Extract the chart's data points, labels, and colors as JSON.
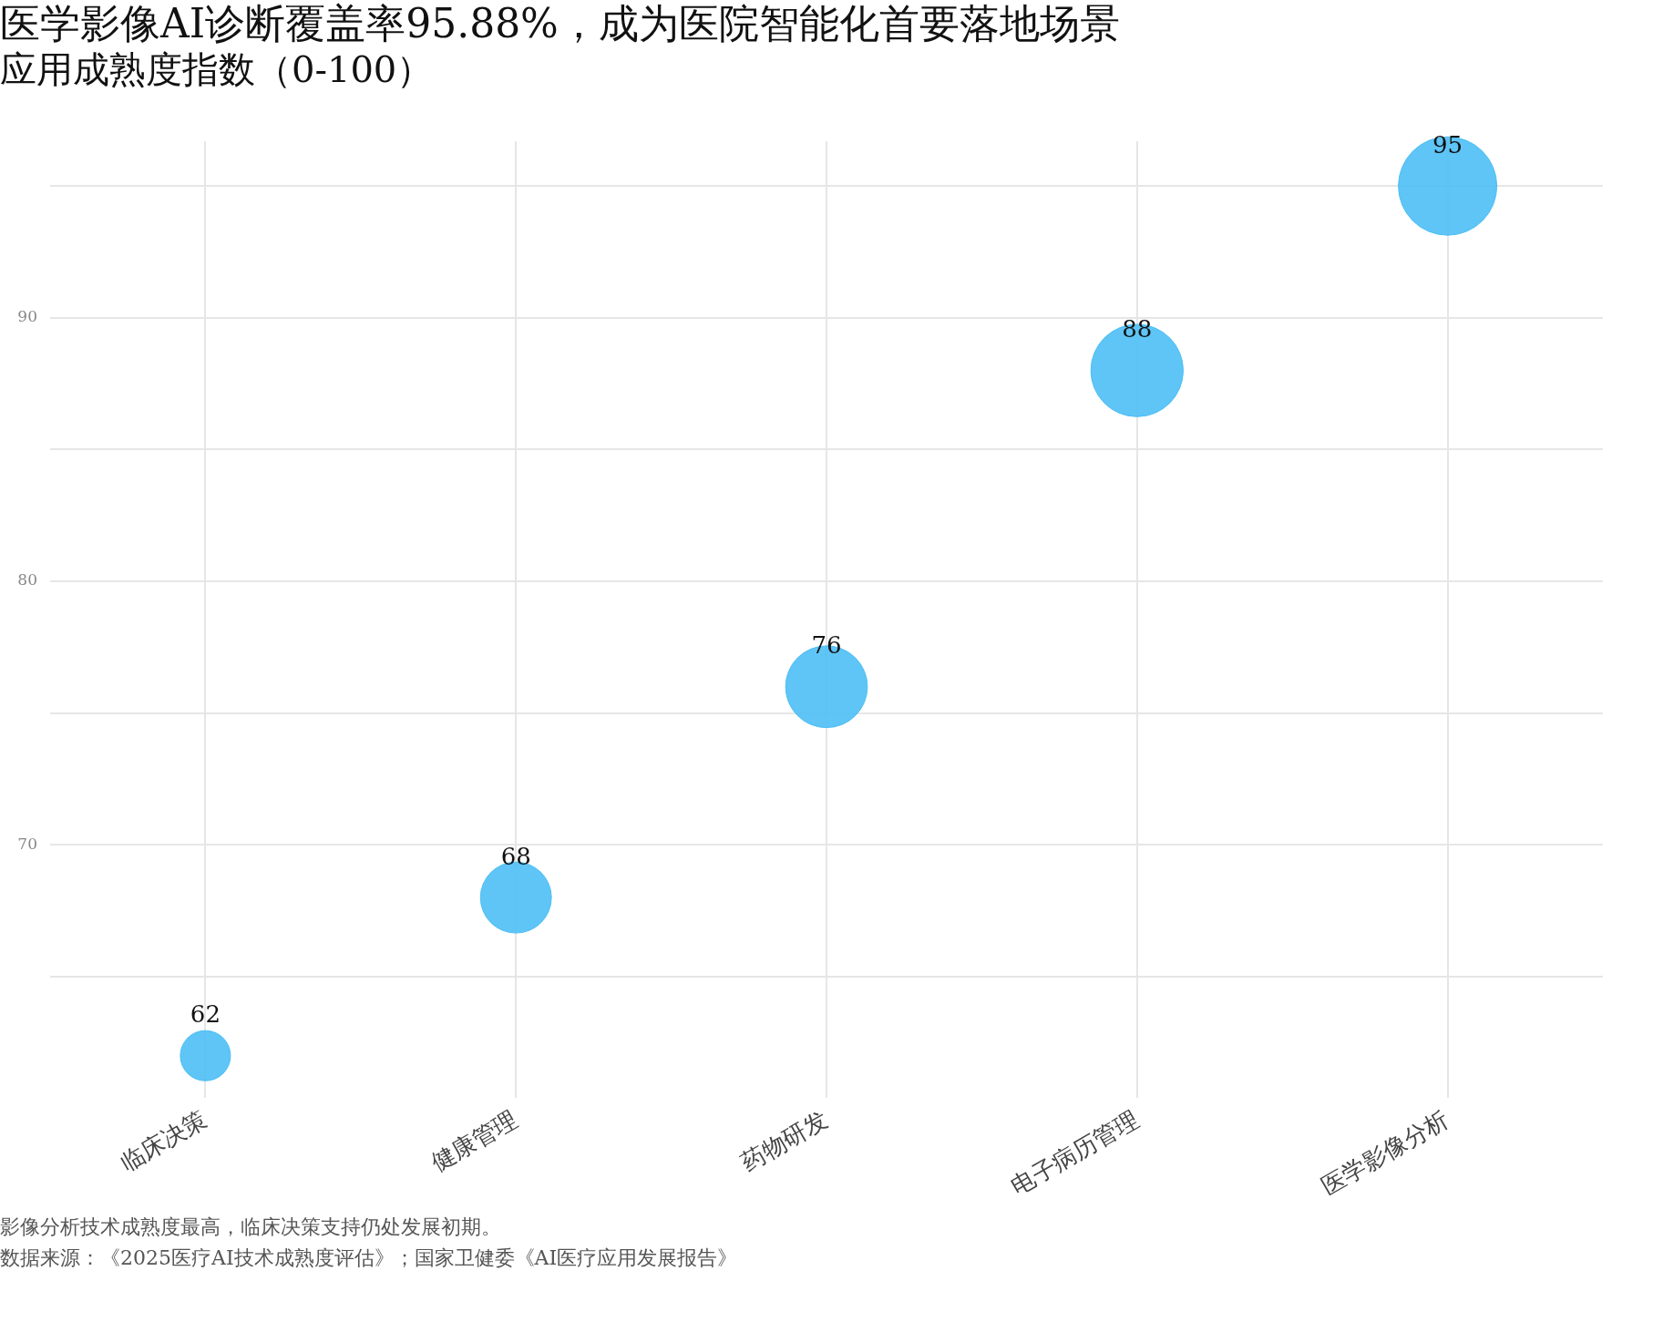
{
  "chart_data": {
    "type": "bubble",
    "title": "医学影像AI诊断覆盖率95.88%，成为医院智能化首要落地场景",
    "subtitle": "应用成熟度指数（0-100）",
    "categories": [
      "临床决策",
      "健康管理",
      "药物研发",
      "电子病历管理",
      "医学影像分析"
    ],
    "values": [
      62,
      68,
      76,
      88,
      95
    ],
    "sizes": [
      0.26,
      0.52,
      0.69,
      0.88,
      1
    ],
    "color": "#4dbff5",
    "data_labels": true,
    "ylim": [
      60.4,
      96.7
    ],
    "yticks": [
      {
        "value": 65,
        "label": null
      },
      70,
      {
        "value": 75,
        "label": null
      },
      80,
      {
        "value": 85,
        "label": null
      },
      90,
      {
        "value": 95,
        "label": null
      }
    ],
    "grid": true,
    "legend": false,
    "annotations": [
      "影像分析技术成熟度最高，临床决策支持仍处发展初期。",
      "数据来源：《2025医疗AI技术成熟度评估》；国家卫健委《AI医疗应用发展报告》"
    ]
  }
}
